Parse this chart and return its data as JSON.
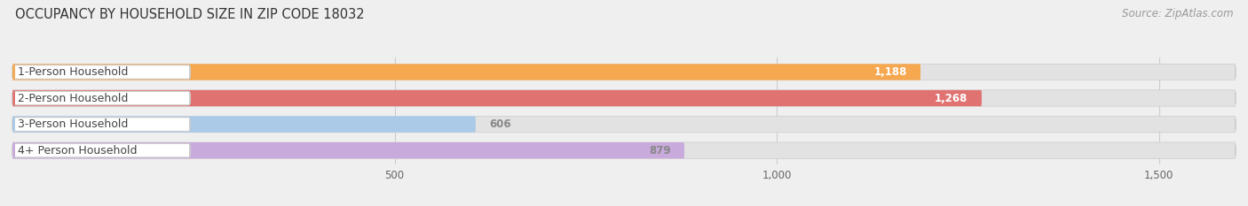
{
  "title": "OCCUPANCY BY HOUSEHOLD SIZE IN ZIP CODE 18032",
  "source": "Source: ZipAtlas.com",
  "categories": [
    "1-Person Household",
    "2-Person Household",
    "3-Person Household",
    "4+ Person Household"
  ],
  "values": [
    1188,
    1268,
    606,
    879
  ],
  "bar_colors": [
    "#F5A850",
    "#E07272",
    "#AACAE8",
    "#C9AADC"
  ],
  "label_pill_colors": [
    "#F5A850",
    "#E07272",
    "#AACAE8",
    "#C9AADC"
  ],
  "value_label_colors": [
    "#FFFFFF",
    "#FFFFFF",
    "#888888",
    "#888888"
  ],
  "xlim_max": 1600,
  "xticks": [
    500,
    1000,
    1500
  ],
  "background_color": "#EFEFEF",
  "bar_bg_color": "#E2E2E2",
  "title_fontsize": 10.5,
  "source_fontsize": 8.5,
  "label_fontsize": 9,
  "value_fontsize": 8.5,
  "tick_fontsize": 8.5,
  "bar_height": 0.62,
  "figsize": [
    14.06,
    2.33
  ],
  "dpi": 100
}
